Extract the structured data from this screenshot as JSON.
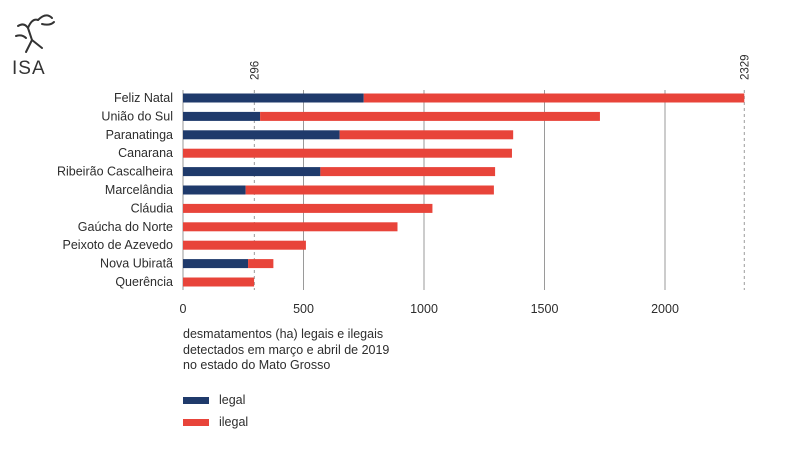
{
  "logo": {
    "text": "ISA"
  },
  "caption": [
    "desmatamentos (ha) legais e ilegais",
    "detectados em março e abril de 2019",
    "no estado do Mato Grosso"
  ],
  "colors": {
    "legal": "#1f3a6b",
    "ilegal": "#e8443a",
    "grid": "#9a9a9a"
  },
  "chart_data": {
    "type": "bar",
    "orientation": "horizontal",
    "stacked": true,
    "categories": [
      "Feliz Natal",
      "União do Sul",
      "Paranatinga",
      "Canarana",
      "Ribeirão Cascalheira",
      "Marcelândia",
      "Cláudia",
      "Gaúcha do Norte",
      "Peixoto de Azevedo",
      "Nova Ubiratã",
      "Querência"
    ],
    "series": [
      {
        "name": "legal",
        "values": [
          750,
          320,
          650,
          0,
          570,
          260,
          0,
          0,
          0,
          270,
          0
        ]
      },
      {
        "name": "ilegal",
        "values": [
          1579,
          1410,
          720,
          1365,
          725,
          1030,
          1035,
          890,
          510,
          105,
          295
        ]
      }
    ],
    "xlim": [
      0,
      2329
    ],
    "xticks": [
      0,
      500,
      1000,
      1500,
      2000
    ],
    "reference_lines": [
      296,
      2329
    ],
    "grid": true,
    "legend": "bottom-left"
  }
}
